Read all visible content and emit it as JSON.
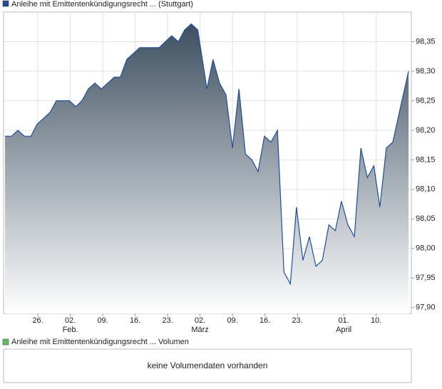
{
  "chart_data": {
    "type": "area",
    "series": [
      {
        "name": "Anleihe mit Emittentenkündigungsrecht ... (Stuttgart)",
        "color": "#1f4e9c",
        "values": [
          98.19,
          98.19,
          98.2,
          98.19,
          98.19,
          98.21,
          98.22,
          98.23,
          98.25,
          98.25,
          98.25,
          98.24,
          98.25,
          98.27,
          98.28,
          98.27,
          98.28,
          98.29,
          98.29,
          98.32,
          98.33,
          98.34,
          98.34,
          98.34,
          98.34,
          98.35,
          98.36,
          98.35,
          98.37,
          98.38,
          98.37,
          98.27,
          98.32,
          98.28,
          98.26,
          98.17,
          98.27,
          98.16,
          98.15,
          98.13,
          98.19,
          98.18,
          98.2,
          97.96,
          97.94,
          98.07,
          97.98,
          98.02,
          97.97,
          97.98,
          98.04,
          98.03,
          98.08,
          98.04,
          98.02,
          98.17,
          98.12,
          98.14,
          98.07,
          98.17,
          98.18,
          98.23,
          98.3
        ]
      }
    ],
    "x": [
      -7.1,
      -5.7,
      -4.3,
      -2.9,
      -1.5,
      -0.2,
      1.2,
      2.6,
      4.0,
      5.4,
      6.8,
      8.2,
      9.5,
      10.9,
      12.3,
      13.7,
      15.1,
      16.5,
      17.8,
      19.2,
      20.6,
      22.0,
      23.4,
      24.8,
      26.2,
      27.5,
      28.9,
      30.3,
      31.7,
      33.1,
      34.5,
      36.5,
      37.8,
      39.2,
      40.6,
      42.0,
      43.4,
      44.8,
      46.2,
      47.5,
      48.9,
      50.3,
      51.7,
      53.1,
      54.5,
      55.8,
      57.2,
      58.6,
      60.0,
      61.4,
      62.8,
      64.2,
      65.5,
      66.9,
      68.3,
      69.7,
      71.1,
      72.5,
      73.8,
      75.2,
      76.6,
      78.0,
      80.0
    ],
    "xlim": [
      -7.4,
      80.6
    ],
    "xticks": [
      {
        "value": 0,
        "label": "26."
      },
      {
        "value": 7,
        "label": "02."
      },
      {
        "value": 14,
        "label": "09."
      },
      {
        "value": 21,
        "label": "16."
      },
      {
        "value": 28,
        "label": "23."
      },
      {
        "value": 35,
        "label": "02."
      },
      {
        "value": 42,
        "label": "09."
      },
      {
        "value": 49,
        "label": "16."
      },
      {
        "value": 56,
        "label": "23."
      },
      {
        "value": 66,
        "label": "01."
      },
      {
        "value": 73,
        "label": "10."
      }
    ],
    "month_labels": [
      {
        "value": 7,
        "label": "Feb."
      },
      {
        "value": 35,
        "label": "März"
      },
      {
        "value": 66,
        "label": "April"
      }
    ],
    "ylim": [
      97.89,
      98.4
    ],
    "yticks": [
      {
        "value": 97.9,
        "label": "97,90"
      },
      {
        "value": 97.95,
        "label": "97,95"
      },
      {
        "value": 98.0,
        "label": "98,00"
      },
      {
        "value": 98.05,
        "label": "98,05"
      },
      {
        "value": 98.1,
        "label": "98,10"
      },
      {
        "value": 98.15,
        "label": "98,15"
      },
      {
        "value": 98.2,
        "label": "98,20"
      },
      {
        "value": 98.25,
        "label": "98,25"
      },
      {
        "value": 98.3,
        "label": "98,30"
      },
      {
        "value": 98.35,
        "label": "98,35"
      }
    ],
    "grid": true
  },
  "volume_panel": {
    "legend": "Anleihe mit Emittentenkündigungsrecht ... Volumen",
    "legend_color": "#66bb66",
    "message": "keine Volumendaten vorhanden"
  }
}
